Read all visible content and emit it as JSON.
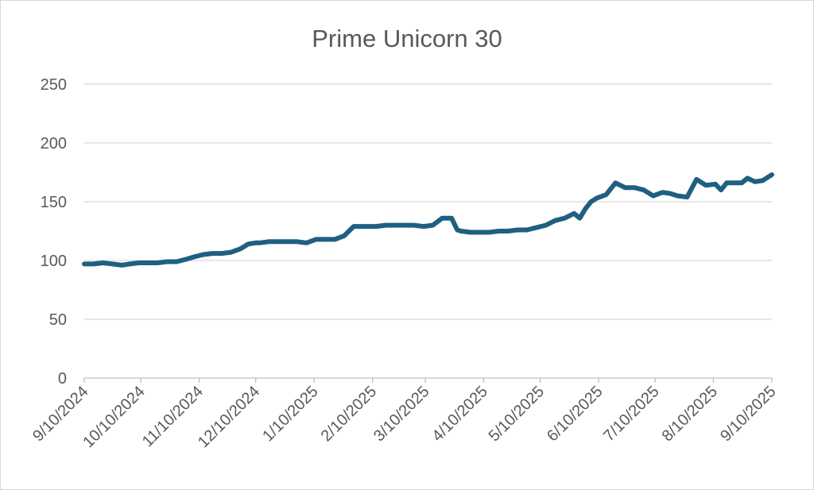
{
  "chart_data": {
    "type": "line",
    "title": "Prime Unicorn 30",
    "xlabel": "",
    "ylabel": "",
    "ylim": [
      0,
      250
    ],
    "yticks": [
      0,
      50,
      100,
      150,
      200,
      250
    ],
    "grid": true,
    "legend": "none",
    "x_tick_labels": [
      "9/10/2024",
      "10/10/2024",
      "11/10/2024",
      "12/10/2024",
      "1/10/2025",
      "2/10/2025",
      "3/10/2025",
      "4/10/2025",
      "5/10/2025",
      "6/10/2025",
      "7/10/2025",
      "8/10/2025",
      "9/10/2025"
    ],
    "series": [
      {
        "color": "#1f5f82",
        "x": [
          "2024-09-10",
          "2024-09-15",
          "2024-09-20",
          "2024-09-25",
          "2024-09-30",
          "2024-10-04",
          "2024-10-09",
          "2024-10-14",
          "2024-10-19",
          "2024-10-24",
          "2024-10-29",
          "2024-11-03",
          "2024-11-07",
          "2024-11-12",
          "2024-11-17",
          "2024-11-22",
          "2024-11-27",
          "2024-12-02",
          "2024-12-06",
          "2024-12-10",
          "2024-12-12",
          "2024-12-17",
          "2024-12-22",
          "2024-12-27",
          "2025-01-01",
          "2025-01-06",
          "2025-01-11",
          "2025-01-16",
          "2025-01-21",
          "2025-01-26",
          "2025-01-31",
          "2025-02-05",
          "2025-02-10",
          "2025-02-12",
          "2025-02-17",
          "2025-02-22",
          "2025-02-27",
          "2025-03-04",
          "2025-03-09",
          "2025-03-14",
          "2025-03-19",
          "2025-03-24",
          "2025-03-27",
          "2025-03-29",
          "2025-04-03",
          "2025-04-08",
          "2025-04-13",
          "2025-04-18",
          "2025-04-23",
          "2025-04-28",
          "2025-05-03",
          "2025-05-08",
          "2025-05-13",
          "2025-05-18",
          "2025-05-23",
          "2025-05-28",
          "2025-05-31",
          "2025-06-03",
          "2025-06-06",
          "2025-06-09",
          "2025-06-14",
          "2025-06-19",
          "2025-06-24",
          "2025-06-29",
          "2025-07-04",
          "2025-07-09",
          "2025-07-14",
          "2025-07-18",
          "2025-07-22",
          "2025-07-27",
          "2025-08-01",
          "2025-08-06",
          "2025-08-11",
          "2025-08-14",
          "2025-08-17",
          "2025-08-20",
          "2025-08-25",
          "2025-08-28",
          "2025-09-01",
          "2025-09-05",
          "2025-09-10"
        ],
        "values": [
          97,
          97,
          98,
          97,
          96,
          97,
          98,
          98,
          98,
          99,
          99,
          101,
          103,
          105,
          106,
          106,
          107,
          110,
          114,
          115,
          115,
          116,
          116,
          116,
          116,
          115,
          118,
          118,
          118,
          121,
          129,
          129,
          129,
          129,
          130,
          130,
          130,
          130,
          129,
          130,
          136,
          136,
          126,
          125,
          124,
          124,
          124,
          125,
          125,
          126,
          126,
          128,
          130,
          134,
          136,
          140,
          136,
          144,
          150,
          153,
          156,
          166,
          162,
          162,
          160,
          155,
          158,
          157,
          155,
          154,
          169,
          164,
          165,
          160,
          166,
          166,
          166,
          170,
          167,
          168,
          173
        ]
      }
    ]
  }
}
